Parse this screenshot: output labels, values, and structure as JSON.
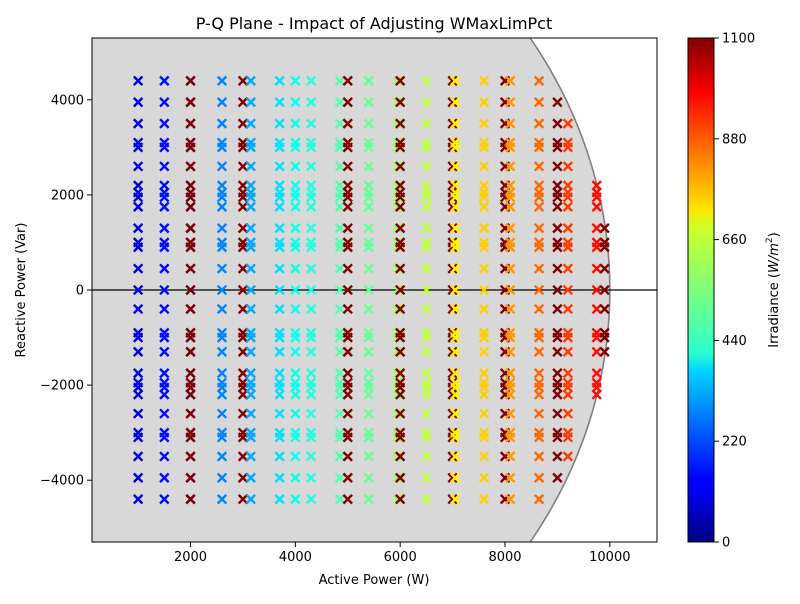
{
  "chart_data": {
    "type": "scatter",
    "title": "P-Q Plane - Impact of Adjusting WMaxLimPct",
    "xlabel": "Active Power (W)",
    "ylabel": "Reactive Power (Var)",
    "xlim": [
      120,
      10900
    ],
    "ylim": [
      -5300,
      5300
    ],
    "xticks": [
      2000,
      4000,
      6000,
      8000,
      10000
    ],
    "yticks": [
      -4000,
      -2000,
      0,
      2000,
      4000
    ],
    "xtick_labels": [
      "2000",
      "4000",
      "6000",
      "8000",
      "10000"
    ],
    "ytick_labels": [
      "−4000",
      "−2000",
      "0",
      "2000",
      "4000"
    ],
    "grid": false,
    "feasible_region": {
      "fill": "#d8d8d8",
      "boundary": "#808080",
      "apparent_power_limit": 10000
    },
    "zero_line": {
      "y": 0,
      "color": "#000000"
    },
    "colorbar": {
      "label": "Irradiance (W/m²)",
      "label_main": "Irradiance (",
      "label_unit": "W/m",
      "label_sup": "2",
      "label_end": ")",
      "colormap": "jet",
      "range": [
        0,
        1100
      ],
      "ticks": [
        0,
        220,
        440,
        660,
        880,
        1100
      ],
      "tick_labels": [
        "0",
        "220",
        "440",
        "660",
        "880",
        "1100"
      ]
    },
    "q_setpoints": [
      -4400,
      -3950,
      -3500,
      -3100,
      -3000,
      -2600,
      -2200,
      -2050,
      -1950,
      -1750,
      -1300,
      -1000,
      -900,
      -400,
      0,
      450,
      900,
      1000,
      1300,
      1750,
      1950,
      2050,
      2200,
      2600,
      3000,
      3100,
      3500,
      3950,
      4400
    ],
    "series_columns": [
      {
        "p": 1000,
        "irradiance": 100
      },
      {
        "p": 1500,
        "irradiance": 150
      },
      {
        "p": 2000,
        "irradiance": 190
      },
      {
        "p": 2000,
        "irradiance": 1100
      },
      {
        "p": 2600,
        "irradiance": 280
      },
      {
        "p": 3000,
        "irradiance": 1100
      },
      {
        "p": 3150,
        "irradiance": 320
      },
      {
        "p": 3700,
        "irradiance": 380
      },
      {
        "p": 4000,
        "irradiance": 660
      },
      {
        "p": 4000,
        "irradiance": 420
      },
      {
        "p": 4300,
        "irradiance": 450
      },
      {
        "p": 4850,
        "irradiance": 500
      },
      {
        "p": 5000,
        "irradiance": 1100
      },
      {
        "p": 5400,
        "irradiance": 520
      },
      {
        "p": 5950,
        "irradiance": 580
      },
      {
        "p": 6000,
        "irradiance": 1100
      },
      {
        "p": 6500,
        "irradiance": 620
      },
      {
        "p": 7000,
        "irradiance": 1100
      },
      {
        "p": 7050,
        "irradiance": 700
      },
      {
        "p": 7600,
        "irradiance": 740
      },
      {
        "p": 8000,
        "irradiance": 1100
      },
      {
        "p": 8100,
        "irradiance": 800
      },
      {
        "p": 8650,
        "irradiance": 850
      },
      {
        "p": 9000,
        "irradiance": 1100
      },
      {
        "p": 9200,
        "irradiance": 900
      },
      {
        "p": 9750,
        "irradiance": 950
      },
      {
        "p": 9900,
        "irradiance": 1100
      }
    ]
  }
}
